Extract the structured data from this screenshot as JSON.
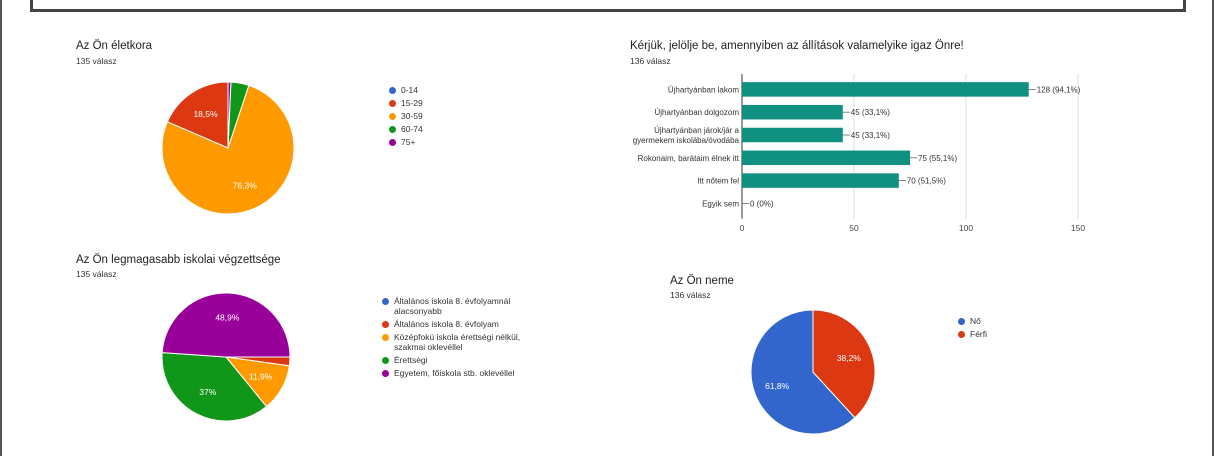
{
  "charts": {
    "age": {
      "title": "Az Ön életkora",
      "subtitle": "135 válasz"
    },
    "statements": {
      "title": "Kérjük, jelölje be, amennyiben az állítások valamelyike igaz Önre!",
      "subtitle": "136 válasz"
    },
    "education": {
      "title": "Az Ön legmagasabb iskolai végzettsége",
      "subtitle": "135 válasz"
    },
    "gender": {
      "title": "Az Ön neme",
      "subtitle": "136 válasz"
    }
  },
  "chart_data": [
    {
      "type": "pie",
      "title": "Az Ön életkora",
      "subtitle": "135 válasz",
      "categories": [
        "0-14",
        "15-29",
        "30-59",
        "60-74",
        "75+"
      ],
      "values": [
        0,
        18.5,
        76.3,
        4.4,
        0.7
      ],
      "slice_labels": [
        "",
        "18,5%",
        "76,3%",
        "",
        ""
      ],
      "colors": [
        "#3366cc",
        "#dc3912",
        "#ff9900",
        "#109618",
        "#990099"
      ],
      "legend": "right"
    },
    {
      "type": "bar",
      "orientation": "horizontal",
      "title": "Kérjük, jelölje be, amennyiben az állítások valamelyike igaz Önre!",
      "subtitle": "136 válasz",
      "categories": [
        "Újhartyánban lakom",
        "Újhartyánban dolgozom",
        "Újhartyánban járok/jár a\ngyermekem iskolába/óvodába",
        "Rokonaim, barátaim élnek itt",
        "Itt nőtem fel",
        "Egyik sem"
      ],
      "values": [
        128,
        45,
        45,
        75,
        70,
        0
      ],
      "data_labels": [
        "128 (94,1%)",
        "45 (33,1%)",
        "45 (33,1%)",
        "75 (55,1%)",
        "70 (51,5%)",
        "0 (0%)"
      ],
      "xticks": [
        "0",
        "50",
        "100",
        "150"
      ],
      "xlim": [
        0,
        150
      ],
      "color": "#109080",
      "grid": true
    },
    {
      "type": "pie",
      "title": "Az Ön legmagasabb iskolai végzettsége",
      "subtitle": "135 válasz",
      "categories": [
        "Általános iskola 8. évfolyamnál\nalacsonyabb",
        "Általános iskola 8. évfolyam",
        "Középfokú iskola érettségi nélkül,\nszakmai oklevéllel",
        "Érettségi",
        "Egyetem, főiskola stb. oklevéllel"
      ],
      "values": [
        0,
        2.2,
        11.9,
        37,
        48.9
      ],
      "slice_labels": [
        "",
        "",
        "11,9%",
        "37%",
        "48,9%"
      ],
      "colors": [
        "#3366cc",
        "#dc3912",
        "#ff9900",
        "#109618",
        "#990099"
      ],
      "legend": "right"
    },
    {
      "type": "pie",
      "title": "Az Ön neme",
      "subtitle": "136 válasz",
      "categories": [
        "Nő",
        "Férfi"
      ],
      "values": [
        61.8,
        38.2
      ],
      "slice_labels": [
        "61,8%",
        "38,2%"
      ],
      "colors": [
        "#3366cc",
        "#dc3912"
      ],
      "legend": "right"
    }
  ]
}
